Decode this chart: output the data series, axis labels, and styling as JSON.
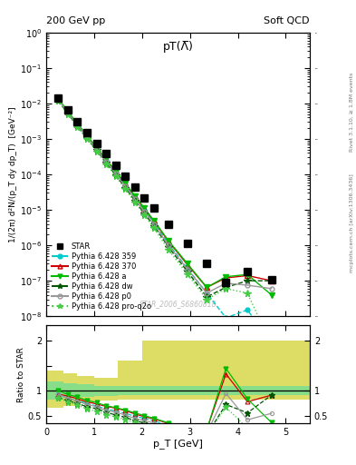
{
  "title_top_left": "200 GeV pp",
  "title_top_right": "Soft QCD",
  "plot_title": "pT(Λ̅)",
  "watermark": "STAR_2006_S6860818",
  "right_label_top": "Rivet 3.1.10, ≥ 1.8M events",
  "right_label_bottom": "mcplots.cern.ch [arXiv:1306.3436]",
  "xlabel": "p_T [GeV]",
  "ylabel_main": "1/(2π) d²N/(p_T dy dp_T)  [GeV⁻²]",
  "ylabel_ratio": "Ratio to STAR",
  "ylim_main_log": [
    -8,
    0
  ],
  "ylim_ratio": [
    0.35,
    2.3
  ],
  "xlim": [
    0.0,
    5.5
  ],
  "star_pt": [
    0.25,
    0.45,
    0.65,
    0.85,
    1.05,
    1.25,
    1.45,
    1.65,
    1.85,
    2.05,
    2.25,
    2.55,
    2.95,
    3.35,
    3.75,
    4.2,
    4.7
  ],
  "star_val": [
    0.014,
    0.0065,
    0.0031,
    0.00155,
    0.00075,
    0.00038,
    0.000185,
    9e-05,
    4.5e-05,
    2.2e-05,
    1.1e-05,
    3.8e-06,
    1.1e-06,
    3e-07,
    9e-08,
    1.8e-07,
    1.1e-07
  ],
  "star_err": [
    0.0012,
    0.0005,
    0.0002,
    0.0001,
    5e-05,
    2.5e-05,
    1.2e-05,
    6e-06,
    3e-06,
    1.5e-06,
    7e-07,
    2.5e-07,
    7e-08,
    2e-08,
    7e-09,
    1.5e-08,
    1e-08
  ],
  "py359_pt": [
    0.25,
    0.45,
    0.65,
    0.85,
    1.05,
    1.25,
    1.45,
    1.65,
    1.85,
    2.05,
    2.25,
    2.55,
    2.95,
    3.35,
    3.75,
    4.2,
    4.7
  ],
  "py359_val": [
    0.013,
    0.0055,
    0.0025,
    0.00115,
    0.00052,
    0.00024,
    0.00011,
    4.9e-05,
    2.2e-05,
    9.8e-06,
    4.4e-06,
    1.1e-06,
    2.2e-07,
    4.5e-08,
    9e-09,
    1.5e-08,
    1.8e-09
  ],
  "py370_pt": [
    0.25,
    0.45,
    0.65,
    0.85,
    1.05,
    1.25,
    1.45,
    1.65,
    1.85,
    2.05,
    2.25,
    2.55,
    2.95,
    3.35,
    3.75,
    4.2,
    4.7
  ],
  "py370_val": [
    0.013,
    0.0058,
    0.0026,
    0.0012,
    0.00055,
    0.00026,
    0.00012,
    5.4e-05,
    2.4e-05,
    1.05e-05,
    4.8e-06,
    1.3e-06,
    2.8e-07,
    6.5e-08,
    1.2e-07,
    1.4e-07,
    1e-07
  ],
  "pya_pt": [
    0.25,
    0.45,
    0.65,
    0.85,
    1.05,
    1.25,
    1.45,
    1.65,
    1.85,
    2.05,
    2.25,
    2.55,
    2.95,
    3.35,
    3.75,
    4.2,
    4.7
  ],
  "pya_val": [
    0.014,
    0.006,
    0.0027,
    0.00125,
    0.00057,
    0.000265,
    0.000122,
    5.5e-05,
    2.5e-05,
    1.1e-05,
    4.9e-06,
    1.35e-06,
    3e-07,
    6.5e-08,
    1.3e-07,
    1.5e-07,
    4e-08
  ],
  "pydw_pt": [
    0.25,
    0.45,
    0.65,
    0.85,
    1.05,
    1.25,
    1.45,
    1.65,
    1.85,
    2.05,
    2.25,
    2.55,
    2.95,
    3.35,
    3.75,
    4.2,
    4.7
  ],
  "pydw_val": [
    0.012,
    0.0052,
    0.0023,
    0.00105,
    0.00048,
    0.000215,
    9.5e-05,
    4.2e-05,
    1.8e-05,
    7.8e-06,
    3.5e-06,
    9e-07,
    1.8e-07,
    3.5e-08,
    6.5e-08,
    1e-07,
    1e-07
  ],
  "pyp0_pt": [
    0.25,
    0.45,
    0.65,
    0.85,
    1.05,
    1.25,
    1.45,
    1.65,
    1.85,
    2.05,
    2.25,
    2.55,
    2.95,
    3.35,
    3.75,
    4.2,
    4.7
  ],
  "pyp0_val": [
    0.013,
    0.0055,
    0.00245,
    0.00112,
    0.00051,
    0.00023,
    0.000105,
    4.6e-05,
    2e-05,
    8.8e-06,
    3.9e-06,
    1e-06,
    2.1e-07,
    4.5e-08,
    8.5e-08,
    7.5e-08,
    6e-08
  ],
  "pyproq2o_pt": [
    0.25,
    0.45,
    0.65,
    0.85,
    1.05,
    1.25,
    1.45,
    1.65,
    1.85,
    2.05,
    2.25,
    2.55,
    2.95,
    3.35,
    3.75,
    4.2,
    4.7
  ],
  "pyproq2o_val": [
    0.012,
    0.005,
    0.0022,
    0.00098,
    0.00044,
    0.000195,
    8.8e-05,
    3.8e-05,
    1.65e-05,
    7e-06,
    3e-06,
    7.5e-07,
    1.5e-07,
    3e-08,
    6e-08,
    4.5e-08,
    1.5e-09
  ],
  "color_359": "#00cccc",
  "color_370": "#cc0000",
  "color_a": "#00bb00",
  "color_dw": "#005500",
  "color_p0": "#999999",
  "color_proq2o": "#44cc44",
  "band_inner_color": "#88dd88",
  "band_outer_color": "#dddd66",
  "ratio_band_x": [
    0.0,
    0.35,
    0.65,
    1.0,
    1.5,
    2.0,
    2.5,
    3.0,
    3.5,
    4.0,
    4.5,
    5.5
  ],
  "ratio_inner_lo": [
    0.82,
    0.85,
    0.88,
    0.9,
    0.91,
    0.91,
    0.91,
    0.91,
    0.91,
    0.91,
    0.91,
    0.91
  ],
  "ratio_inner_hi": [
    1.18,
    1.15,
    1.12,
    1.1,
    1.09,
    1.09,
    1.09,
    1.09,
    1.09,
    1.09,
    1.09,
    1.09
  ],
  "ratio_outer_lo": [
    0.65,
    0.7,
    0.75,
    0.8,
    0.82,
    0.82,
    0.82,
    0.82,
    0.82,
    0.82,
    0.82,
    0.82
  ],
  "ratio_outer_hi": [
    1.4,
    1.35,
    1.3,
    1.25,
    1.6,
    2.0,
    2.0,
    2.0,
    2.0,
    2.0,
    2.0,
    2.0
  ]
}
